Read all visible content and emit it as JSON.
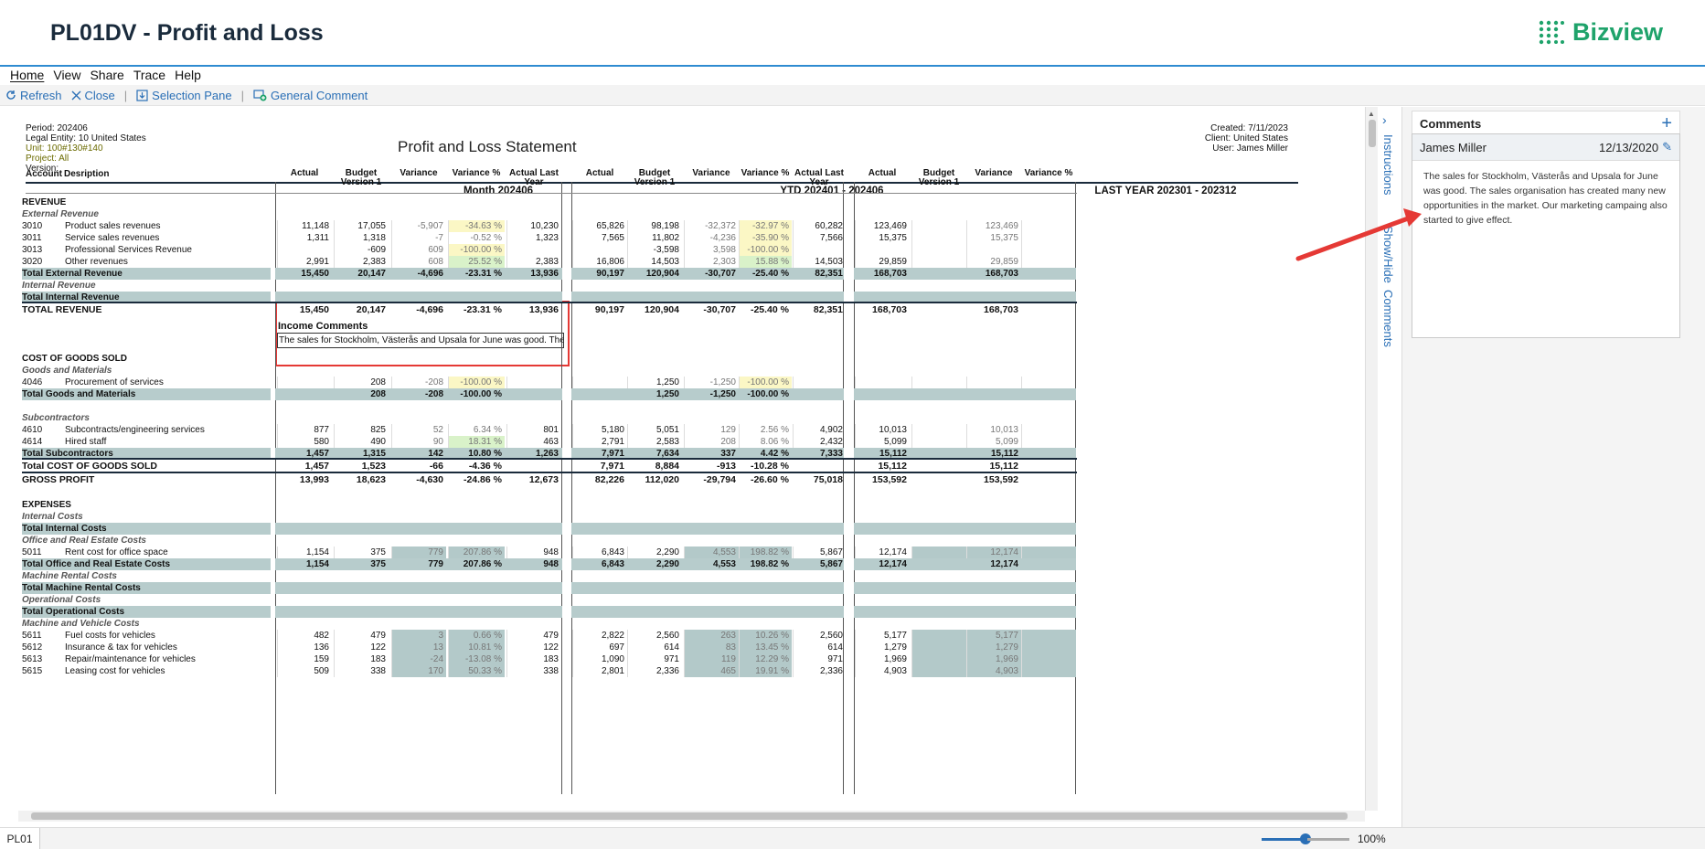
{
  "app": {
    "title": "PL01DV - Profit and Loss",
    "brand": "Bizview"
  },
  "menu": [
    "Home",
    "View",
    "Share",
    "Trace",
    "Help"
  ],
  "toolbar": {
    "refresh": "Refresh",
    "close": "Close",
    "selection_pane": "Selection Pane",
    "general_comment": "General Comment"
  },
  "report": {
    "meta_left": [
      "Period: 202406",
      "Legal Entity: 10 United States",
      "Unit: 100#130#140",
      "Project: All",
      "Version:"
    ],
    "title": "Profit and Loss Statement",
    "meta_right": [
      "Created: 7/11/2023",
      "Client: United States",
      "User: James Miller"
    ],
    "groups": [
      "Month 202406",
      "YTD 202401 - 202406",
      "LAST YEAR 202301 - 202312"
    ],
    "col_account": "Account",
    "col_desc": "Desription",
    "cols_g1": [
      "Actual",
      "Budget Version 1",
      "Variance",
      "Variance %",
      "Actual Last Year"
    ],
    "cols_g3": [
      "Actual",
      "Budget Version 1",
      "Variance",
      "Variance %"
    ],
    "income_comments_label": "Income Comments",
    "income_comment_text": "The sales for Stockholm, Västerås and Upsala for June was good. The sale",
    "rows": [
      {
        "t": "h",
        "label": "REVENUE"
      },
      {
        "t": "s",
        "label": "External Revenue"
      },
      {
        "t": "d",
        "acc": "3010",
        "desc": "Product sales revenues",
        "v": [
          "11,148",
          "17,055",
          "-5,907",
          "-34.63 %",
          "10,230",
          "65,826",
          "98,198",
          "-32,372",
          "-32.97 %",
          "60,282",
          "123,469",
          "",
          "123,469",
          ""
        ],
        "hl": [
          "",
          "",
          "",
          "y",
          "",
          "",
          "",
          "",
          "y",
          "",
          "",
          "",
          "",
          ""
        ]
      },
      {
        "t": "d",
        "acc": "3011",
        "desc": "Service sales revenues",
        "v": [
          "1,311",
          "1,318",
          "-7",
          "-0.52 %",
          "1,323",
          "7,565",
          "11,802",
          "-4,236",
          "-35.90 %",
          "7,566",
          "15,375",
          "",
          "15,375",
          ""
        ],
        "hl": [
          "",
          "",
          "",
          "",
          "",
          "",
          "",
          "",
          "y",
          "",
          "",
          "",
          "",
          ""
        ]
      },
      {
        "t": "d",
        "acc": "3013",
        "desc": "Professional Services Revenue",
        "v": [
          "",
          "-609",
          "609",
          "-100.00 %",
          "",
          "",
          "-3,598",
          "3,598",
          "-100.00 %",
          "",
          "",
          "",
          "",
          ""
        ],
        "hl": [
          "",
          "",
          "",
          "y",
          "",
          "",
          "",
          "",
          "y",
          "",
          "",
          "",
          "",
          ""
        ]
      },
      {
        "t": "d",
        "acc": "3020",
        "desc": "Other revenues",
        "v": [
          "2,991",
          "2,383",
          "608",
          "25.52 %",
          "2,383",
          "16,806",
          "14,503",
          "2,303",
          "15.88 %",
          "14,503",
          "29,859",
          "",
          "29,859",
          ""
        ],
        "hl": [
          "",
          "",
          "",
          "g",
          "",
          "",
          "",
          "",
          "g",
          "",
          "",
          "",
          "",
          ""
        ]
      },
      {
        "t": "T",
        "label": "Total External Revenue",
        "v": [
          "15,450",
          "20,147",
          "-4,696",
          "-23.31 %",
          "13,936",
          "90,197",
          "120,904",
          "-30,707",
          "-25.40 %",
          "82,351",
          "168,703",
          "",
          "168,703",
          ""
        ]
      },
      {
        "t": "s",
        "label": "Internal Revenue"
      },
      {
        "t": "T",
        "label": "Total Internal Revenue",
        "v": [
          "",
          "",
          "",
          "",
          "",
          "",
          "",
          "",
          "",
          "",
          "",
          "",
          "",
          ""
        ]
      },
      {
        "t": "G",
        "label": "TOTAL REVENUE",
        "v": [
          "15,450",
          "20,147",
          "-4,696",
          "-23.31 %",
          "13,936",
          "90,197",
          "120,904",
          "-30,707",
          "-25.40 %",
          "82,351",
          "168,703",
          "",
          "168,703",
          ""
        ]
      },
      {
        "t": "gap"
      },
      {
        "t": "gap"
      },
      {
        "t": "gap"
      },
      {
        "t": "h",
        "label": "COST OF GOODS SOLD"
      },
      {
        "t": "s",
        "label": "Goods and Materials"
      },
      {
        "t": "d",
        "acc": "4046",
        "desc": "Procurement of services",
        "v": [
          "",
          "208",
          "-208",
          "-100.00 %",
          "",
          "",
          "1,250",
          "-1,250",
          "-100.00 %",
          "",
          "",
          "",
          "",
          ""
        ],
        "hl": [
          "",
          "",
          "",
          "y",
          "",
          "",
          "",
          "",
          "y",
          "",
          "",
          "",
          "",
          ""
        ]
      },
      {
        "t": "T",
        "label": "Total Goods and Materials",
        "v": [
          "",
          "208",
          "-208",
          "-100.00 %",
          "",
          "",
          "1,250",
          "-1,250",
          "-100.00 %",
          "",
          "",
          "",
          "",
          ""
        ]
      },
      {
        "t": "gap"
      },
      {
        "t": "s",
        "label": "Subcontractors"
      },
      {
        "t": "d",
        "acc": "4610",
        "desc": "Subcontracts/engineering services",
        "v": [
          "877",
          "825",
          "52",
          "6.34 %",
          "801",
          "5,180",
          "5,051",
          "129",
          "2.56 %",
          "4,902",
          "10,013",
          "",
          "10,013",
          ""
        ],
        "hl": [
          "",
          "",
          "",
          "",
          "",
          "",
          "",
          "",
          "",
          "",
          "",
          "",
          "",
          ""
        ]
      },
      {
        "t": "d",
        "acc": "4614",
        "desc": "Hired staff",
        "v": [
          "580",
          "490",
          "90",
          "18.31 %",
          "463",
          "2,791",
          "2,583",
          "208",
          "8.06 %",
          "2,432",
          "5,099",
          "",
          "5,099",
          ""
        ],
        "hl": [
          "",
          "",
          "",
          "g",
          "",
          "",
          "",
          "",
          "",
          "",
          "",
          "",
          "",
          ""
        ]
      },
      {
        "t": "T",
        "label": "Total Subcontractors",
        "v": [
          "1,457",
          "1,315",
          "142",
          "10.80 %",
          "1,263",
          "7,971",
          "7,634",
          "337",
          "4.42 %",
          "7,333",
          "15,112",
          "",
          "15,112",
          ""
        ]
      },
      {
        "t": "G",
        "label": "Total COST OF GOODS SOLD",
        "v": [
          "1,457",
          "1,523",
          "-66",
          "-4.36 %",
          "",
          "7,971",
          "8,884",
          "-913",
          "-10.28 %",
          "",
          "15,112",
          "",
          "15,112",
          ""
        ]
      },
      {
        "t": "G",
        "label": "GROSS PROFIT",
        "v": [
          "13,993",
          "18,623",
          "-4,630",
          "-24.86 %",
          "12,673",
          "82,226",
          "112,020",
          "-29,794",
          "-26.60 %",
          "75,018",
          "153,592",
          "",
          "153,592",
          ""
        ]
      },
      {
        "t": "gap"
      },
      {
        "t": "h",
        "label": "EXPENSES"
      },
      {
        "t": "s",
        "label": "Internal Costs"
      },
      {
        "t": "T",
        "label": "Total Internal Costs",
        "v": [
          "",
          "",
          "",
          "",
          "",
          "",
          "",
          "",
          "",
          "",
          "",
          "",
          "",
          ""
        ]
      },
      {
        "t": "s",
        "label": "Office and Real Estate Costs"
      },
      {
        "t": "d",
        "acc": "5011",
        "desc": "Rent cost for office space",
        "v": [
          "1,154",
          "375",
          "779",
          "207.86 %",
          "948",
          "6,843",
          "2,290",
          "4,553",
          "198.82 %",
          "5,867",
          "12,174",
          "",
          "12,174",
          ""
        ],
        "hl": [
          "",
          "",
          "t",
          "t",
          "",
          "",
          "",
          "t",
          "t",
          "",
          "",
          "t",
          "t",
          "t"
        ]
      },
      {
        "t": "T",
        "label": "Total Office and Real Estate Costs",
        "v": [
          "1,154",
          "375",
          "779",
          "207.86 %",
          "948",
          "6,843",
          "2,290",
          "4,553",
          "198.82 %",
          "5,867",
          "12,174",
          "",
          "12,174",
          ""
        ]
      },
      {
        "t": "s",
        "label": "Machine Rental Costs"
      },
      {
        "t": "T",
        "label": "Total Machine Rental Costs",
        "v": [
          "",
          "",
          "",
          "",
          "",
          "",
          "",
          "",
          "",
          "",
          "",
          "",
          "",
          ""
        ]
      },
      {
        "t": "s",
        "label": "Operational Costs"
      },
      {
        "t": "T",
        "label": "Total Operational Costs",
        "v": [
          "",
          "",
          "",
          "",
          "",
          "",
          "",
          "",
          "",
          "",
          "",
          "",
          "",
          ""
        ]
      },
      {
        "t": "s",
        "label": "Machine and Vehicle Costs"
      },
      {
        "t": "d",
        "acc": "5611",
        "desc": "Fuel costs for vehicles",
        "v": [
          "482",
          "479",
          "3",
          "0.66 %",
          "479",
          "2,822",
          "2,560",
          "263",
          "10.26 %",
          "2,560",
          "5,177",
          "",
          "5,177",
          ""
        ],
        "hl": [
          "",
          "",
          "t",
          "t",
          "",
          "",
          "",
          "t",
          "t",
          "",
          "",
          "t",
          "t",
          "t"
        ]
      },
      {
        "t": "d",
        "acc": "5612",
        "desc": "Insurance & tax for vehicles",
        "v": [
          "136",
          "122",
          "13",
          "10.81 %",
          "122",
          "697",
          "614",
          "83",
          "13.45 %",
          "614",
          "1,279",
          "",
          "1,279",
          ""
        ],
        "hl": [
          "",
          "",
          "t",
          "t",
          "",
          "",
          "",
          "t",
          "t",
          "",
          "",
          "t",
          "t",
          "t"
        ]
      },
      {
        "t": "d",
        "acc": "5613",
        "desc": "Repair/maintenance for vehicles",
        "v": [
          "159",
          "183",
          "-24",
          "-13.08 %",
          "183",
          "1,090",
          "971",
          "119",
          "12.29 %",
          "971",
          "1,969",
          "",
          "1,969",
          ""
        ],
        "hl": [
          "",
          "",
          "t",
          "t",
          "",
          "",
          "",
          "t",
          "t",
          "",
          "",
          "t",
          "t",
          "t"
        ]
      },
      {
        "t": "d",
        "acc": "5615",
        "desc": "Leasing cost for vehicles",
        "v": [
          "509",
          "338",
          "170",
          "50.33 %",
          "338",
          "2,801",
          "2,336",
          "465",
          "19.91 %",
          "2,336",
          "4,903",
          "",
          "4,903",
          ""
        ],
        "hl": [
          "",
          "",
          "t",
          "t",
          "",
          "",
          "",
          "t",
          "t",
          "",
          "",
          "t",
          "t",
          "t"
        ]
      }
    ]
  },
  "side_tabs": [
    "Instructions",
    "Show/Hide",
    "Comments"
  ],
  "comments": {
    "header": "Comments",
    "add": "+",
    "author": "James Miller",
    "date": "12/13/2020",
    "text": "The sales for Stockholm, Västerås and Upsala for June was good. The sales organisation has created many new opportunities in the market. Our marketing campaing also started to give effect."
  },
  "status": {
    "tab": "PL01",
    "zoom": "100%"
  },
  "colors": {
    "accent": "#2e8bd1",
    "brand": "#1fa36b",
    "total_row": "#b7cccc",
    "highlight_red": "#e53935"
  }
}
